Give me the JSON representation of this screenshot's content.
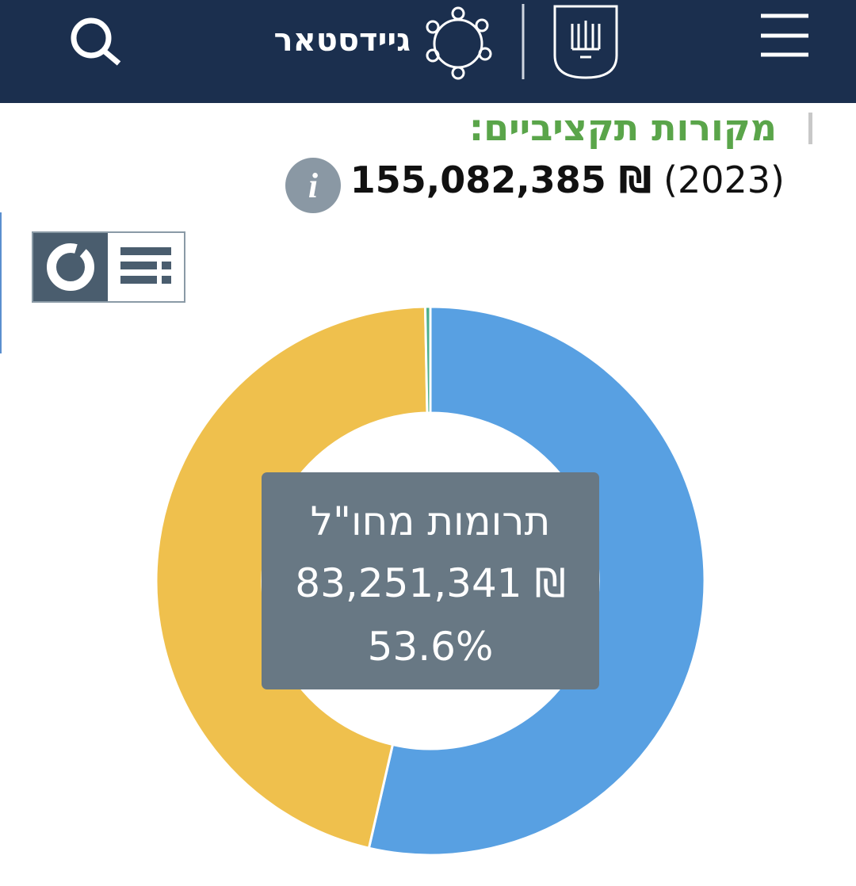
{
  "header": {
    "app_name": "גיידסטאר"
  },
  "section": {
    "title": "מקורות תקציביים:",
    "total": "155,082,385 ₪",
    "year": "(2023)"
  },
  "chart_data": {
    "type": "donut",
    "categories": [
      "תרומות מחו\"ל",
      null,
      null
    ],
    "values": [
      53.6,
      46.1,
      0.3
    ],
    "value_labels": [
      "53.6%",
      null,
      null
    ],
    "colors": [
      "#58a0e2",
      "#efc04d",
      "#4caf8a"
    ],
    "tooltip_amount": "83,251,341 ₪"
  }
}
